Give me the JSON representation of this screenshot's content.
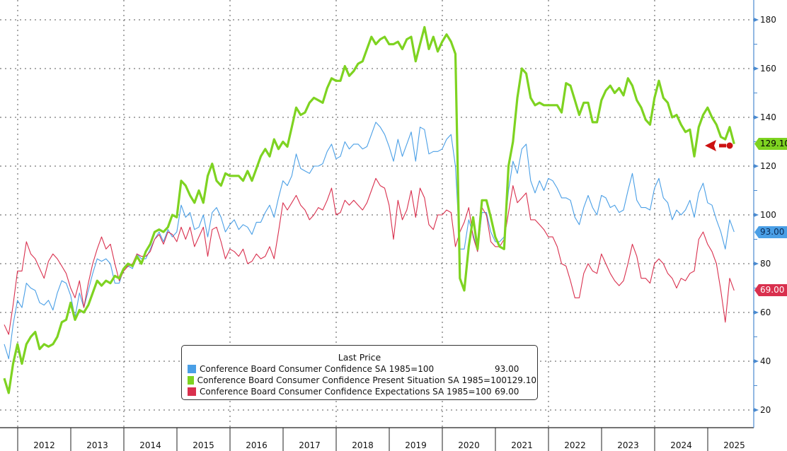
{
  "chart_data": {
    "type": "line",
    "title": "",
    "xlabel": "",
    "ylabel": "",
    "ylim": [
      20,
      180
    ],
    "yticks": [
      20,
      40,
      60,
      80,
      100,
      120,
      140,
      160,
      180
    ],
    "y_axis_side": "right",
    "year_labels": [
      "2012",
      "2013",
      "2014",
      "2015",
      "2016",
      "2017",
      "2018",
      "2019",
      "2020",
      "2021",
      "2022",
      "2023",
      "2024",
      "2025"
    ],
    "grid": true,
    "legend_placement": "bottom-center",
    "legend_title": "Last Price",
    "x": [
      "2011-09",
      "2011-10",
      "2011-11",
      "2011-12",
      "2012-01",
      "2012-02",
      "2012-03",
      "2012-04",
      "2012-05",
      "2012-06",
      "2012-07",
      "2012-08",
      "2012-09",
      "2012-10",
      "2012-11",
      "2012-12",
      "2013-01",
      "2013-02",
      "2013-03",
      "2013-04",
      "2013-05",
      "2013-06",
      "2013-07",
      "2013-08",
      "2013-09",
      "2013-10",
      "2013-11",
      "2013-12",
      "2014-01",
      "2014-02",
      "2014-03",
      "2014-04",
      "2014-05",
      "2014-06",
      "2014-07",
      "2014-08",
      "2014-09",
      "2014-10",
      "2014-11",
      "2014-12",
      "2015-01",
      "2015-02",
      "2015-03",
      "2015-04",
      "2015-05",
      "2015-06",
      "2015-07",
      "2015-08",
      "2015-09",
      "2015-10",
      "2015-11",
      "2015-12",
      "2016-01",
      "2016-02",
      "2016-03",
      "2016-04",
      "2016-05",
      "2016-06",
      "2016-07",
      "2016-08",
      "2016-09",
      "2016-10",
      "2016-11",
      "2016-12",
      "2017-01",
      "2017-02",
      "2017-03",
      "2017-04",
      "2017-05",
      "2017-06",
      "2017-07",
      "2017-08",
      "2017-09",
      "2017-10",
      "2017-11",
      "2017-12",
      "2018-01",
      "2018-02",
      "2018-03",
      "2018-04",
      "2018-05",
      "2018-06",
      "2018-07",
      "2018-08",
      "2018-09",
      "2018-10",
      "2018-11",
      "2018-12",
      "2019-01",
      "2019-02",
      "2019-03",
      "2019-04",
      "2019-05",
      "2019-06",
      "2019-07",
      "2019-08",
      "2019-09",
      "2019-10",
      "2019-11",
      "2019-12",
      "2020-01",
      "2020-02",
      "2020-03",
      "2020-04",
      "2020-05",
      "2020-06",
      "2020-07",
      "2020-08",
      "2020-09",
      "2020-10",
      "2020-11",
      "2020-12",
      "2021-01",
      "2021-02",
      "2021-03",
      "2021-04",
      "2021-05",
      "2021-06",
      "2021-07",
      "2021-08",
      "2021-09",
      "2021-10",
      "2021-11",
      "2021-12",
      "2022-01",
      "2022-02",
      "2022-03",
      "2022-04",
      "2022-05",
      "2022-06",
      "2022-07",
      "2022-08",
      "2022-09",
      "2022-10",
      "2022-11",
      "2022-12",
      "2023-01",
      "2023-02",
      "2023-03",
      "2023-04",
      "2023-05",
      "2023-06",
      "2023-07",
      "2023-08",
      "2023-09",
      "2023-10",
      "2023-11",
      "2023-12",
      "2024-01",
      "2024-02",
      "2024-03",
      "2024-04",
      "2024-05",
      "2024-06",
      "2024-07",
      "2024-08",
      "2024-09",
      "2024-10",
      "2024-11",
      "2024-12",
      "2025-01",
      "2025-02",
      "2025-03",
      "2025-04",
      "2025-05",
      "2025-06"
    ],
    "series": [
      {
        "name": "Conference Board Consumer Confidence SA 1985=100",
        "last": "93.00",
        "color": "#4a9fe6",
        "values": [
          47,
          41,
          55,
          65,
          62,
          72,
          70,
          69,
          64,
          63,
          65,
          61,
          68,
          73,
          72,
          67,
          58,
          68,
          62,
          69,
          76,
          82,
          81,
          82,
          80,
          72,
          72,
          78,
          79,
          78,
          84,
          82,
          82,
          86,
          90,
          93,
          89,
          94,
          91,
          93,
          104,
          99,
          101,
          94,
          95,
          100,
          91,
          101,
          103,
          99,
          93,
          96,
          98,
          94,
          96,
          95,
          92,
          97,
          97,
          101,
          104,
          99,
          107,
          114,
          112,
          116,
          125,
          119,
          118,
          117,
          120,
          120,
          121,
          126,
          129,
          123,
          124,
          130,
          127,
          129,
          129,
          127,
          128,
          133,
          138,
          136,
          133,
          128,
          122,
          131,
          124,
          129,
          134,
          122,
          136,
          135,
          125,
          126,
          126,
          127,
          131,
          133,
          120,
          86,
          86,
          98,
          92,
          85,
          101,
          101,
          93,
          89,
          89,
          91,
          110,
          122,
          117,
          127,
          129,
          114,
          109,
          114,
          110,
          115,
          114,
          111,
          107,
          107,
          106,
          99,
          96,
          103,
          108,
          103,
          100,
          108,
          107,
          103,
          104,
          101,
          102,
          110,
          117,
          106,
          103,
          103,
          102,
          111,
          115,
          107,
          105,
          98,
          102,
          100,
          102,
          106,
          99,
          109,
          113,
          105,
          104,
          98,
          93,
          86,
          98,
          93
        ]
      },
      {
        "name": "Conference Board Consumer Confidence Present Situation SA 1985=100",
        "last": "129.10",
        "color": "#7ed321",
        "values": [
          33,
          27,
          39,
          47,
          39,
          47,
          50,
          52,
          45,
          47,
          46,
          47,
          50,
          56,
          57,
          64,
          57,
          61,
          60,
          63,
          68,
          73,
          71,
          73,
          72,
          75,
          74,
          78,
          80,
          79,
          83,
          80,
          85,
          88,
          93,
          94,
          93,
          95,
          100,
          99,
          114,
          112,
          108,
          105,
          110,
          105,
          116,
          121,
          114,
          112,
          117,
          116,
          116,
          116,
          114,
          118,
          114,
          119,
          124,
          127,
          124,
          131,
          127,
          130,
          128,
          136,
          144,
          141,
          142,
          146,
          148,
          147,
          146,
          152,
          156,
          155,
          155,
          161,
          157,
          159,
          162,
          163,
          168,
          173,
          170,
          172,
          173,
          170,
          170,
          171,
          168,
          172,
          173,
          163,
          170,
          177,
          168,
          173,
          167,
          171,
          174,
          171,
          166,
          74,
          69,
          87,
          99,
          86,
          106,
          106,
          99,
          91,
          87,
          86,
          120,
          130,
          148,
          160,
          158,
          148,
          145,
          146,
          145,
          145,
          145,
          145,
          142,
          154,
          153,
          147,
          141,
          146,
          146,
          138,
          138,
          147,
          151,
          153,
          150,
          152,
          149,
          156,
          153,
          147,
          144,
          139,
          137,
          148,
          155,
          148,
          146,
          140,
          141,
          137,
          134,
          135,
          124,
          136,
          141,
          144,
          140,
          137,
          132,
          131,
          136,
          129.1
        ]
      },
      {
        "name": "Conference Board Consumer Confidence Expectations SA 1985=100",
        "last": "69.00",
        "color": "#d9304e",
        "values": [
          55,
          51,
          63,
          77,
          77,
          89,
          84,
          82,
          78,
          74,
          81,
          84,
          82,
          79,
          76,
          70,
          66,
          73,
          62,
          72,
          80,
          86,
          91,
          86,
          88,
          80,
          73,
          77,
          79,
          80,
          84,
          83,
          83,
          85,
          90,
          92,
          88,
          93,
          92,
          89,
          95,
          90,
          95,
          87,
          91,
          95,
          83,
          94,
          95,
          89,
          82,
          86,
          85,
          83,
          86,
          80,
          81,
          84,
          82,
          83,
          87,
          82,
          93,
          105,
          102,
          105,
          108,
          104,
          102,
          98,
          100,
          103,
          102,
          106,
          111,
          100,
          101,
          106,
          104,
          106,
          104,
          102,
          105,
          110,
          115,
          112,
          111,
          104,
          90,
          106,
          98,
          102,
          110,
          99,
          111,
          107,
          96,
          94,
          100,
          100,
          102,
          101,
          87,
          93,
          97,
          103,
          91,
          85,
          103,
          100,
          89,
          87,
          87,
          90,
          101,
          112,
          105,
          107,
          109,
          98,
          98,
          96,
          94,
          91,
          91,
          87,
          80,
          79,
          73,
          66,
          66,
          76,
          80,
          77,
          76,
          84,
          80,
          76,
          73,
          71,
          73,
          80,
          88,
          83,
          74,
          74,
          72,
          80,
          82,
          80,
          76,
          74,
          70,
          74,
          73,
          76,
          77,
          90,
          93,
          88,
          85,
          80,
          69,
          56,
          74,
          69
        ]
      }
    ],
    "annotation": {
      "type": "arrow",
      "color": "#cc1111",
      "points_to": "Present Situation latest value"
    }
  }
}
